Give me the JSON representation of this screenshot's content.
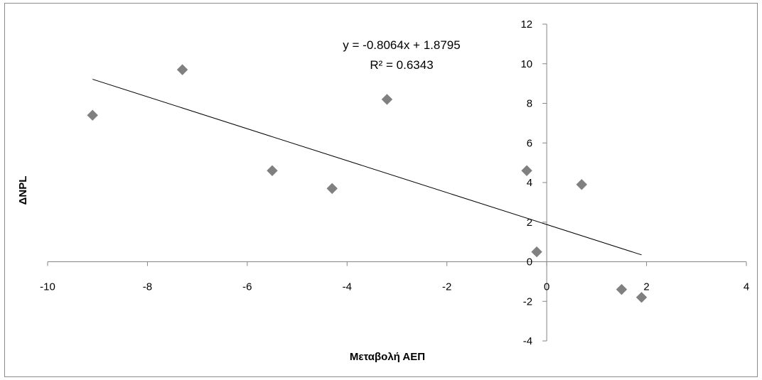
{
  "chart_data": {
    "type": "scatter",
    "title": "",
    "xlabel": "Μεταβολή ΑΕΠ",
    "ylabel": "ΔNPL",
    "xlim": [
      -10,
      4
    ],
    "ylim": [
      -4,
      12
    ],
    "x_ticks": [
      -10,
      -8,
      -6,
      -4,
      -2,
      0,
      2,
      4
    ],
    "y_ticks": [
      -4,
      -2,
      0,
      2,
      4,
      6,
      8,
      10,
      12
    ],
    "grid": false,
    "legend": "none",
    "marker": "diamond",
    "marker_color": "#808080",
    "trendline_color": "#000000",
    "series": [
      {
        "points": [
          {
            "x": -9.1,
            "y": 7.4
          },
          {
            "x": -7.3,
            "y": 9.7
          },
          {
            "x": -5.5,
            "y": 4.6
          },
          {
            "x": -4.3,
            "y": 3.7
          },
          {
            "x": -3.2,
            "y": 8.2
          },
          {
            "x": -0.4,
            "y": 4.6
          },
          {
            "x": -0.2,
            "y": 0.5
          },
          {
            "x": 0.7,
            "y": 3.9
          },
          {
            "x": 1.5,
            "y": -1.4
          },
          {
            "x": 1.9,
            "y": -1.8
          }
        ]
      }
    ],
    "trendline": {
      "slope": -0.8064,
      "intercept": 1.8795,
      "x_range": [
        -9.1,
        1.9
      ],
      "equation": "y = -0.8064x + 1.8795",
      "r_squared": "R² = 0.6343"
    }
  }
}
